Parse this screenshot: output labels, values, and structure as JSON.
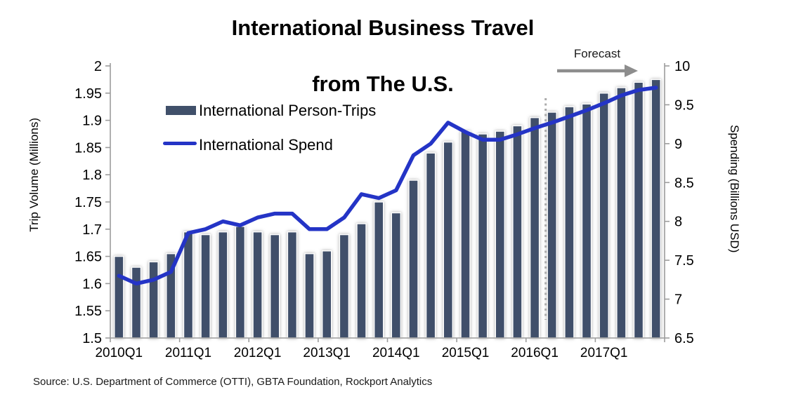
{
  "title": {
    "line1": "International Business Travel",
    "line2": "from The U.S."
  },
  "legend": [
    {
      "label": "International Person-Trips",
      "swatch": "bar-swatch"
    },
    {
      "label": "International Spend",
      "swatch": "line-swatch"
    }
  ],
  "forecast": {
    "label": "Forecast"
  },
  "source": "Source: U.S. Department of Commerce (OTTI), GBTA Foundation, Rockport Analytics",
  "colors": {
    "bar": "#40506A",
    "line": "#2434C6",
    "axis": "#9C9C9C",
    "dashed": "#ABABAB",
    "arrow": "#8D8D8D",
    "text": "#000000"
  },
  "chart_data": {
    "type": "bar+line",
    "title": "International Business Travel from The U.S.",
    "grid": false,
    "legend_position": "top-left-inside",
    "categories": [
      "2010Q1",
      "2010Q2",
      "2010Q3",
      "2010Q4",
      "2011Q1",
      "2011Q2",
      "2011Q3",
      "2011Q4",
      "2012Q1",
      "2012Q2",
      "2012Q3",
      "2012Q4",
      "2013Q1",
      "2013Q2",
      "2013Q3",
      "2013Q4",
      "2014Q1",
      "2014Q2",
      "2014Q3",
      "2014Q4",
      "2015Q1",
      "2015Q2",
      "2015Q3",
      "2015Q4",
      "2016Q1",
      "2016Q2",
      "2016Q3",
      "2016Q4",
      "2017Q1",
      "2017Q2",
      "2017Q3",
      "2017Q4"
    ],
    "x_tick_labels": [
      "2010Q1",
      "2011Q1",
      "2012Q1",
      "2013Q1",
      "2014Q1",
      "2015Q1",
      "2016Q1",
      "2017Q1"
    ],
    "series": [
      {
        "name": "International Person-Trips",
        "type": "bar",
        "axis": "left",
        "values": [
          1.65,
          1.63,
          1.64,
          1.655,
          1.695,
          1.69,
          1.695,
          1.705,
          1.695,
          1.69,
          1.695,
          1.655,
          1.66,
          1.69,
          1.71,
          1.75,
          1.73,
          1.79,
          1.84,
          1.86,
          1.88,
          1.875,
          1.88,
          1.89,
          1.905,
          1.915,
          1.925,
          1.93,
          1.95,
          1.96,
          1.97,
          1.975
        ]
      },
      {
        "name": "International Spend",
        "type": "line",
        "axis": "right",
        "values": [
          7.3,
          7.2,
          7.25,
          7.35,
          7.85,
          7.9,
          8.0,
          7.95,
          8.05,
          8.1,
          8.1,
          7.9,
          7.9,
          8.05,
          8.35,
          8.3,
          8.4,
          8.85,
          9.0,
          9.27,
          9.15,
          9.05,
          9.05,
          9.12,
          9.2,
          9.27,
          9.35,
          9.43,
          9.52,
          9.62,
          9.69,
          9.72
        ]
      }
    ],
    "left_axis": {
      "title": "Trip Volume (Millions)",
      "min": 1.5,
      "max": 2,
      "tick_values": [
        1.5,
        1.55,
        1.6,
        1.65,
        1.7,
        1.75,
        1.8,
        1.85,
        1.9,
        1.95,
        2
      ],
      "tick_labels": [
        "1.5",
        "1.55",
        "1.6",
        "1.65",
        "1.7",
        "1.75",
        "1.8",
        "1.85",
        "1.9",
        "1.95",
        "2"
      ]
    },
    "right_axis": {
      "title": "Spending (Billions USD)",
      "min": 6.5,
      "max": 10,
      "tick_values": [
        6.5,
        7,
        7.5,
        8,
        8.5,
        9,
        9.5,
        10
      ],
      "tick_labels": [
        "6.5",
        "7",
        "7.5",
        "8",
        "8.5",
        "9",
        "9.5",
        "10"
      ]
    },
    "forecast_start_index": 25
  }
}
